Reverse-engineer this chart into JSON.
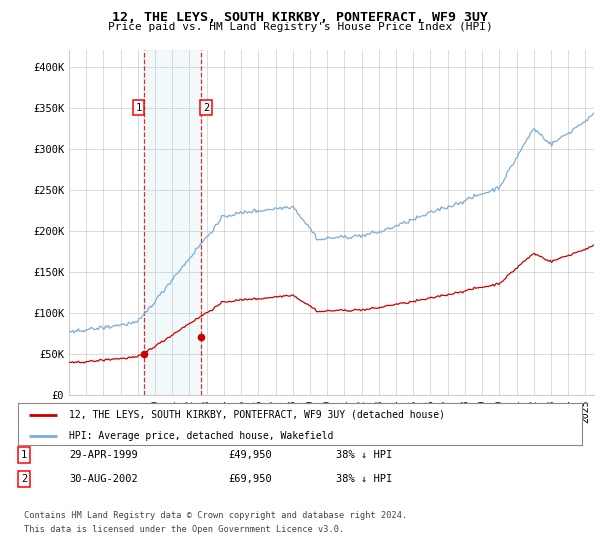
{
  "title": "12, THE LEYS, SOUTH KIRKBY, PONTEFRACT, WF9 3UY",
  "subtitle": "Price paid vs. HM Land Registry's House Price Index (HPI)",
  "legend_line1": "12, THE LEYS, SOUTH KIRKBY, PONTEFRACT, WF9 3UY (detached house)",
  "legend_line2": "HPI: Average price, detached house, Wakefield",
  "footer1": "Contains HM Land Registry data © Crown copyright and database right 2024.",
  "footer2": "This data is licensed under the Open Government Licence v3.0.",
  "transaction1_date": "29-APR-1999",
  "transaction1_price": "£49,950",
  "transaction1_hpi": "38% ↓ HPI",
  "transaction2_date": "30-AUG-2002",
  "transaction2_price": "£69,950",
  "transaction2_hpi": "38% ↓ HPI",
  "hpi_color": "#7aaddb",
  "price_color": "#cc0000",
  "background_color": "#ffffff",
  "grid_color": "#cccccc",
  "marker1_year": 1999.33,
  "marker1_value": 49950,
  "marker2_year": 2002.67,
  "marker2_value": 69950,
  "vline1_x": 1999.33,
  "vline2_x": 2002.67,
  "ylim": [
    0,
    420000
  ],
  "xlim_start": 1995.0,
  "xlim_end": 2025.5
}
